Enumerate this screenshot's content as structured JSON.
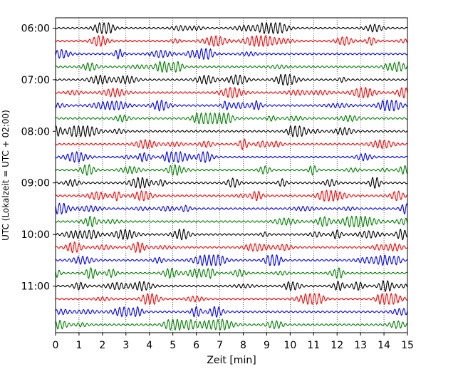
{
  "chart_data": {
    "type": "line",
    "xlabel": "Zeit  [min]",
    "ylabel": "UTC (Lokalzeit = UTC + 02:00)",
    "xlim": [
      0,
      15
    ],
    "x_ticks": [
      "0",
      "1",
      "2",
      "3",
      "4",
      "5",
      "6",
      "7",
      "8",
      "9",
      "10",
      "11",
      "12",
      "13",
      "14",
      "15"
    ],
    "y_tick_labels": [
      "06:00",
      "07:00",
      "08:00",
      "09:00",
      "10:00",
      "11:00"
    ],
    "start_time_utc": "06:00",
    "trace_interval_minutes": 15,
    "trace_count": 24,
    "trace_colors": [
      "#000000",
      "#ff0000",
      "#0000ff",
      "#008000"
    ],
    "grid": "vertical dotted lines at each minute",
    "legend": "none"
  }
}
